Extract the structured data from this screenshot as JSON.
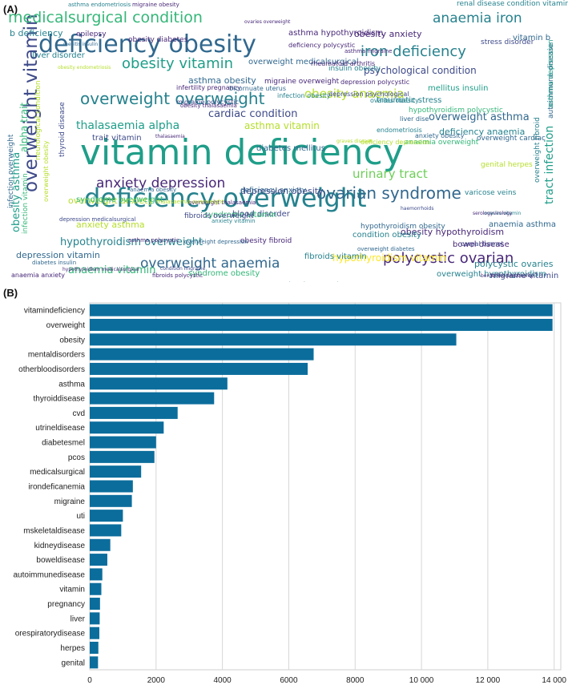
{
  "panels": {
    "a_label": "(A)",
    "b_label": "(B)"
  },
  "wordcloud": {
    "words": [
      {
        "text": "vitamin deficiency",
        "weight": 1.0,
        "color": "#1f9e89"
      },
      {
        "text": "deficiency overweight",
        "weight": 0.72,
        "color": "#26828e"
      },
      {
        "text": "deficiency obesity",
        "weight": 0.62,
        "color": "#31688e"
      },
      {
        "text": "overweight vitamin",
        "weight": 0.55,
        "color": "#3e4a89",
        "vertical": true
      },
      {
        "text": "medicalsurgical condition",
        "weight": 0.42,
        "color": "#35b779"
      },
      {
        "text": "ovarian syndrome",
        "weight": 0.42,
        "color": "#31688e"
      },
      {
        "text": "overweight overweight",
        "weight": 0.42,
        "color": "#26828e"
      },
      {
        "text": "polycystic ovarian",
        "weight": 0.38,
        "color": "#482878"
      },
      {
        "text": "obesity vitamin",
        "weight": 0.38,
        "color": "#1f9e89"
      },
      {
        "text": "overweight anaemia",
        "weight": 0.36,
        "color": "#31688e"
      },
      {
        "text": "iron deficiency",
        "weight": 0.36,
        "color": "#26828e"
      },
      {
        "text": "anaemia iron",
        "weight": 0.32,
        "color": "#26828e"
      },
      {
        "text": "anxiety depression",
        "weight": 0.33,
        "color": "#482878"
      },
      {
        "text": "urinary tract",
        "weight": 0.3,
        "color": "#6ece58"
      },
      {
        "text": "obesity anaemia",
        "weight": 0.3,
        "color": "#b5de2b"
      },
      {
        "text": "tract infection",
        "weight": 0.3,
        "color": "#1f9e89",
        "vertical": true
      },
      {
        "text": "hypothyroidism overweight",
        "weight": 0.27,
        "color": "#26828e"
      },
      {
        "text": "thalasaemia alpha",
        "weight": 0.27,
        "color": "#1f9e89"
      },
      {
        "text": "cardiac condition",
        "weight": 0.25,
        "color": "#3e4a89"
      },
      {
        "text": "obesity asthma",
        "weight": 0.26,
        "color": "#1f9e89",
        "vertical": true
      },
      {
        "text": "alpha trait",
        "weight": 0.24,
        "color": "#35b779",
        "vertical": true
      },
      {
        "text": "overweight asthma",
        "weight": 0.25,
        "color": "#31688e"
      },
      {
        "text": "hypothyroidism vitamin",
        "weight": 0.24,
        "color": "#fde725"
      },
      {
        "text": "anaemia vitamin",
        "weight": 0.25,
        "color": "#35b779"
      },
      {
        "text": "asthma obesity",
        "weight": 0.22,
        "color": "#31688e"
      },
      {
        "text": "obesity anxiety",
        "weight": 0.22,
        "color": "#482878"
      },
      {
        "text": "asthma vitamin",
        "weight": 0.2,
        "color": "#b5de2b"
      },
      {
        "text": "overweight hypothyroidism",
        "weight": 0.22,
        "color": "#26828e"
      },
      {
        "text": "depression obesity",
        "weight": 0.2,
        "color": "#3e4a89"
      },
      {
        "text": "obesity hypothyroidism",
        "weight": 0.2,
        "color": "#482878"
      },
      {
        "text": "anxiety asthma",
        "weight": 0.21,
        "color": "#b5de2b"
      },
      {
        "text": "overweight anxiety",
        "weight": 0.21,
        "color": "#b5de2b"
      },
      {
        "text": "psychological condition",
        "weight": 0.2,
        "color": "#3e4a89"
      },
      {
        "text": "deficiency anaemia",
        "weight": 0.2,
        "color": "#26828e"
      },
      {
        "text": "depression vitamin",
        "weight": 0.2,
        "color": "#31688e"
      },
      {
        "text": "syndrome obesity",
        "weight": 0.19,
        "color": "#35b779"
      },
      {
        "text": "polycystic ovaries",
        "weight": 0.18,
        "color": "#26828e"
      },
      {
        "text": "migraine vitamin",
        "weight": 0.18,
        "color": "#3e4a89"
      },
      {
        "text": "anaemia anxiety",
        "weight": 0.17,
        "color": "#482878"
      },
      {
        "text": "overweight medicalsurgical",
        "weight": 0.15,
        "color": "#31688e"
      },
      {
        "text": "renal disease condition vitamin",
        "weight": 0.17,
        "color": "#26828e"
      },
      {
        "text": "diabetes mellitus",
        "weight": 0.17,
        "color": "#31688e"
      },
      {
        "text": "syndrome overweight",
        "weight": 0.17,
        "color": "#35b779"
      },
      {
        "text": "blood disorder",
        "weight": 0.17,
        "color": "#3e4a89"
      },
      {
        "text": "mellitus insulin",
        "weight": 0.17,
        "color": "#1f9e89"
      },
      {
        "text": "trait vitamin",
        "weight": 0.17,
        "color": "#3e4a89"
      },
      {
        "text": "syndrome vitamin",
        "weight": 0.17,
        "color": "#35b779"
      },
      {
        "text": "condition obesity",
        "weight": 0.17,
        "color": "#26828e"
      },
      {
        "text": "hypothyroidism obesity",
        "weight": 0.17,
        "color": "#31688e"
      },
      {
        "text": "anaemia asthma",
        "weight": 0.16,
        "color": "#31688e"
      },
      {
        "text": "bowel disease",
        "weight": 0.16,
        "color": "#482878"
      },
      {
        "text": "fibroids vitamin",
        "weight": 0.16,
        "color": "#26828e"
      },
      {
        "text": "varicose veins",
        "weight": 0.16,
        "color": "#26828e"
      },
      {
        "text": "traumatic stress",
        "weight": 0.15,
        "color": "#26828e"
      },
      {
        "text": "deficiency anxiety",
        "weight": 0.15,
        "color": "#31688e"
      },
      {
        "text": "genital herpes",
        "weight": 0.15,
        "color": "#b5de2b"
      },
      {
        "text": "fibroids overweight",
        "weight": 0.14,
        "color": "#3e4a89"
      },
      {
        "text": "migraine overweight",
        "weight": 0.14,
        "color": "#482878"
      },
      {
        "text": "obesity fibroid",
        "weight": 0.14,
        "color": "#482878"
      },
      {
        "text": "infection overweight",
        "weight": 0.15,
        "color": "#31688e",
        "vertical": true
      },
      {
        "text": "infection vitamin",
        "weight": 0.15,
        "color": "#35b779",
        "vertical": true
      },
      {
        "text": "neurological condition",
        "weight": 0.14,
        "color": "#b5de2b",
        "vertical": true
      },
      {
        "text": "autoimmune disease",
        "weight": 0.14,
        "color": "#31688e",
        "vertical": true
      },
      {
        "text": "overweight fibroid",
        "weight": 0.14,
        "color": "#26828e",
        "vertical": true
      },
      {
        "text": "asthma depression",
        "weight": 0.14,
        "color": "#1f9e89",
        "vertical": true
      },
      {
        "text": "overweight obesity",
        "weight": 0.13,
        "color": "#b5de2b",
        "vertical": true
      },
      {
        "text": "thyroid disease",
        "weight": 0.12,
        "color": "#3e4a89",
        "vertical": true
      },
      {
        "text": "b deficiency",
        "weight": 0.15,
        "color": "#26828e"
      },
      {
        "text": "liver disorder",
        "weight": 0.14,
        "color": "#26828e"
      },
      {
        "text": "vitamin b",
        "weight": 0.14,
        "color": "#31688e"
      },
      {
        "text": "insulin obesity",
        "weight": 0.13,
        "color": "#26828e"
      },
      {
        "text": "asthma hypothyroidism",
        "weight": 0.12,
        "color": "#482878"
      },
      {
        "text": "stress disorder",
        "weight": 0.13,
        "color": "#3e4a89"
      },
      {
        "text": "endometriosis",
        "weight": 0.12,
        "color": "#26828e"
      },
      {
        "text": "hypothyroidism polycystic",
        "weight": 0.11,
        "color": "#35b779"
      },
      {
        "text": "anaemia overweight",
        "weight": 0.12,
        "color": "#35b779"
      },
      {
        "text": "overweight cardiac",
        "weight": 0.12,
        "color": "#31688e"
      },
      {
        "text": "overweight diabetes",
        "weight": 0.12,
        "color": "#31688e"
      },
      {
        "text": "obesity diabetes",
        "weight": 0.1,
        "color": "#482878"
      },
      {
        "text": "epilepsy",
        "weight": 0.11,
        "color": "#482878"
      },
      {
        "text": "carpal tunnel",
        "weight": 0.12,
        "color": "#3e4a89"
      },
      {
        "text": "diabetes insulin",
        "weight": 0.12,
        "color": "#31688e"
      },
      {
        "text": "infertility pregnancy",
        "weight": 0.09,
        "color": "#482878"
      },
      {
        "text": "migraine polycystic",
        "weight": 0.09,
        "color": "#3e4a89"
      },
      {
        "text": "bicornuate uterus",
        "weight": 0.1,
        "color": "#31688e"
      },
      {
        "text": "infection obesity",
        "weight": 0.1,
        "color": "#26828e"
      },
      {
        "text": "deficiency depression",
        "weight": 0.1,
        "color": "#b5de2b"
      },
      {
        "text": "anxiety obesity",
        "weight": 0.1,
        "color": "#31688e"
      },
      {
        "text": "obesity thalasaemia",
        "weight": 0.1,
        "color": "#482878"
      },
      {
        "text": "depression psychological",
        "weight": 0.09,
        "color": "#3e4a89"
      },
      {
        "text": "deficiency polycystic",
        "weight": 0.1,
        "color": "#482878"
      },
      {
        "text": "asthma migraine",
        "weight": 0.1,
        "color": "#482878"
      },
      {
        "text": "overweight thalasaemia",
        "weight": 0.09,
        "color": "#482878"
      },
      {
        "text": "anxiety vitamin",
        "weight": 0.09,
        "color": "#26828e"
      },
      {
        "text": "overweight depression",
        "weight": 0.09,
        "color": "#31688e"
      },
      {
        "text": "thalasaemia overweight",
        "weight": 0.09,
        "color": "#b5de2b"
      },
      {
        "text": "depression medicalsurgical",
        "weight": 0.09,
        "color": "#3e4a89"
      },
      {
        "text": "anaemia obesity",
        "weight": 0.09,
        "color": "#31688e"
      },
      {
        "text": "asthma polycystic",
        "weight": 0.08,
        "color": "#482878"
      },
      {
        "text": "thrombocytopaenia",
        "weight": 0.08,
        "color": "#31688e"
      },
      {
        "text": "fibroids polycystic",
        "weight": 0.08,
        "color": "#482878"
      },
      {
        "text": "asthma endometriosis",
        "weight": 0.08,
        "color": "#26828e"
      },
      {
        "text": "migraine obesity",
        "weight": 0.1,
        "color": "#482878"
      },
      {
        "text": "hypothyroidism medicalsurgical",
        "weight": 0.08,
        "color": "#482878"
      },
      {
        "text": "mellitis insulin",
        "weight": 0.08,
        "color": "#31688e"
      },
      {
        "text": "borderline personality",
        "weight": 0.08,
        "color": "#482878"
      },
      {
        "text": "condition migraine",
        "weight": 0.07,
        "color": "#3e4a89"
      },
      {
        "text": "ovaries vitamin",
        "weight": 0.07,
        "color": "#26828e"
      },
      {
        "text": "obesity endometriosis",
        "weight": 0.07,
        "color": "#b5de2b"
      },
      {
        "text": "thalasaemia",
        "weight": 0.08,
        "color": "#482878"
      },
      {
        "text": "ovaries overweight",
        "weight": 0.07,
        "color": "#482878"
      },
      {
        "text": "graves disease",
        "weight": 0.07,
        "color": "#b5de2b"
      },
      {
        "text": "haemorrhoids",
        "weight": 0.07,
        "color": "#3e4a89"
      },
      {
        "text": "serologyvirology",
        "weight": 0.07,
        "color": "#482878"
      },
      {
        "text": "rheumatoid arthritis",
        "weight": 0.07,
        "color": "#482878"
      },
      {
        "text": "depression polycystic",
        "weight": 0.07,
        "color": "#482878"
      },
      {
        "text": "ovaries obesity",
        "weight": 0.07,
        "color": "#26828e"
      },
      {
        "text": "liver dise",
        "weight": 0.06,
        "color": "#31688e"
      }
    ]
  },
  "chart_data": {
    "type": "bar",
    "orientation": "horizontal",
    "categories": [
      "vitamindeficiency",
      "overweight",
      "obesity",
      "mentaldisorders",
      "otherbloodisorders",
      "asthma",
      "thyroiddisease",
      "cvd",
      "utrineldisease",
      "diabetesmel",
      "pcos",
      "medicalsurgical",
      "irondeficanemia",
      "migraine",
      "uti",
      "mskeletaldisease",
      "kidneydisease",
      "boweldisease",
      "autoimmunedisease",
      "vitamin",
      "pregnancy",
      "liver",
      "orespiratorydisease",
      "herpes",
      "genital"
    ],
    "values": [
      13950,
      13950,
      11050,
      6750,
      6570,
      4150,
      3750,
      2650,
      2230,
      2000,
      1950,
      1550,
      1300,
      1270,
      1000,
      950,
      620,
      530,
      380,
      350,
      310,
      300,
      290,
      260,
      250
    ],
    "xlim": [
      0,
      14200
    ],
    "xticks": [
      0,
      2000,
      4000,
      6000,
      8000,
      10000,
      12000,
      14000
    ],
    "xtick_labels": [
      "0",
      "2000",
      "4000",
      "6000",
      "8000",
      "10 000",
      "12 000",
      "14 000"
    ],
    "bar_color": "#0b6d9c",
    "grid": "vertical",
    "title": "",
    "xlabel": "",
    "ylabel": ""
  }
}
